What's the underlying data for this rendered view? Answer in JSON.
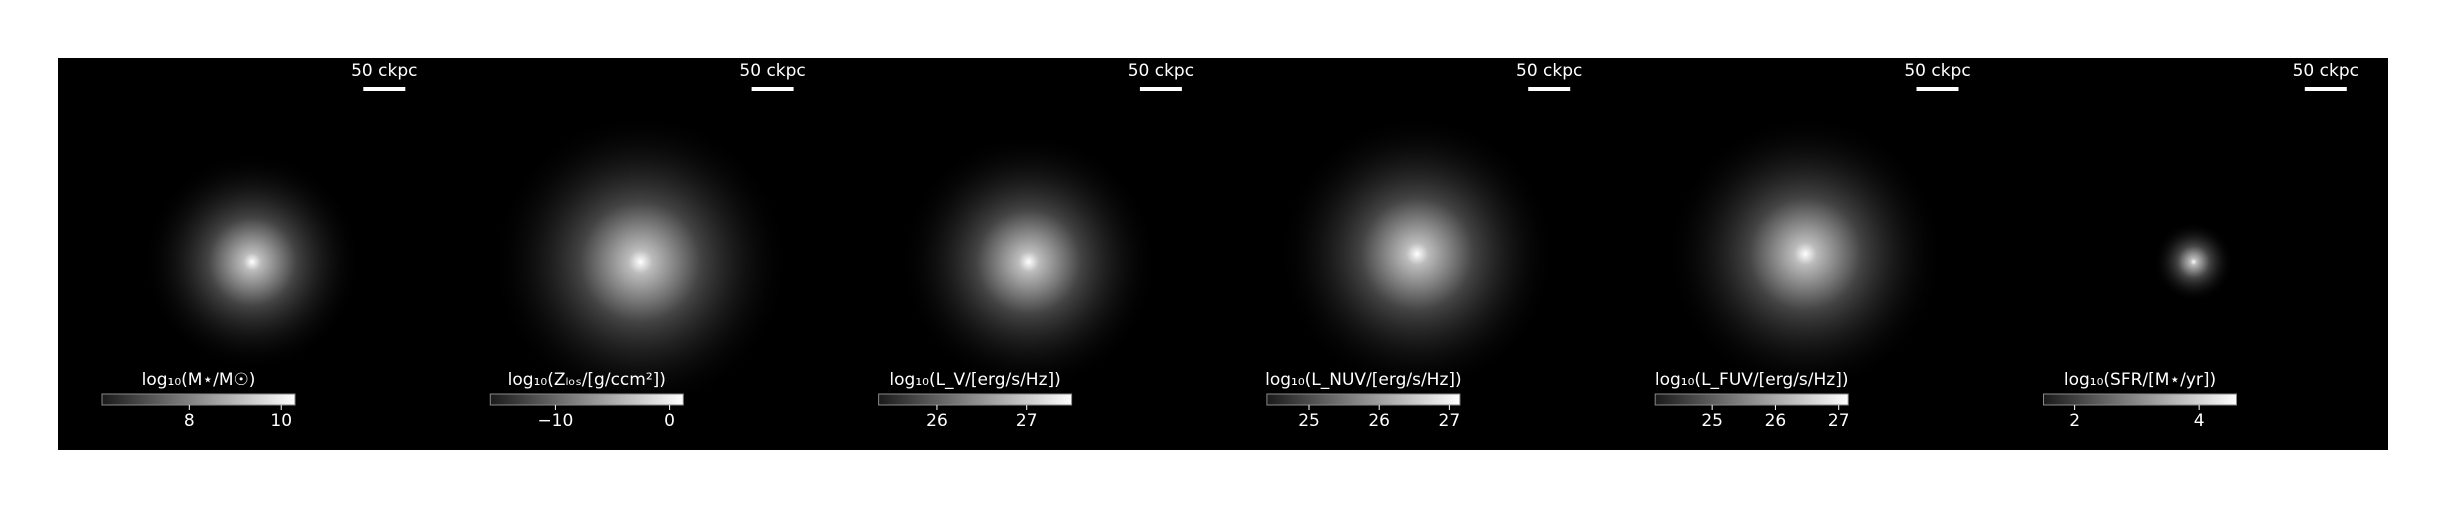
{
  "chart_data": [
    {
      "type": "image",
      "cmap": "gray",
      "scale_bar": "50 ckpc",
      "colorbar_label": "log₁₀(M⋆/M☉)",
      "clim": [
        6.1,
        10.3
      ],
      "cticks": [
        8,
        10
      ]
    },
    {
      "type": "image",
      "cmap": "gray",
      "scale_bar": "50 ckpc",
      "colorbar_label": "log₁₀(Zₗₒₛ/[g/ccm²])",
      "clim": [
        -15.7,
        1.2
      ],
      "cticks": [
        {
          "value": -10,
          "label": "−10"
        },
        0
      ]
    },
    {
      "type": "image",
      "cmap": "gray",
      "scale_bar": "50 ckpc",
      "colorbar_label": "log₁₀(L_V/[erg/s/Hz])",
      "clim": [
        25.35,
        27.5
      ],
      "cticks": [
        26,
        27
      ]
    },
    {
      "type": "image",
      "cmap": "gray",
      "scale_bar": "50 ckpc",
      "colorbar_label": "log₁₀(L_NUV/[erg/s/Hz])",
      "clim": [
        24.4,
        27.15
      ],
      "cticks": [
        25,
        26,
        27
      ]
    },
    {
      "type": "image",
      "cmap": "gray",
      "scale_bar": "50 ckpc",
      "colorbar_label": "log₁₀(L_FUV/[erg/s/Hz])",
      "clim": [
        24.1,
        27.15
      ],
      "cticks": [
        25,
        26,
        27
      ]
    },
    {
      "type": "image",
      "cmap": "gray",
      "scale_bar": "50 ckpc",
      "colorbar_label": "log₁₀(SFR/[M⋆/yr])",
      "clim": [
        1.5,
        4.6
      ],
      "cticks": [
        2,
        4
      ]
    }
  ]
}
